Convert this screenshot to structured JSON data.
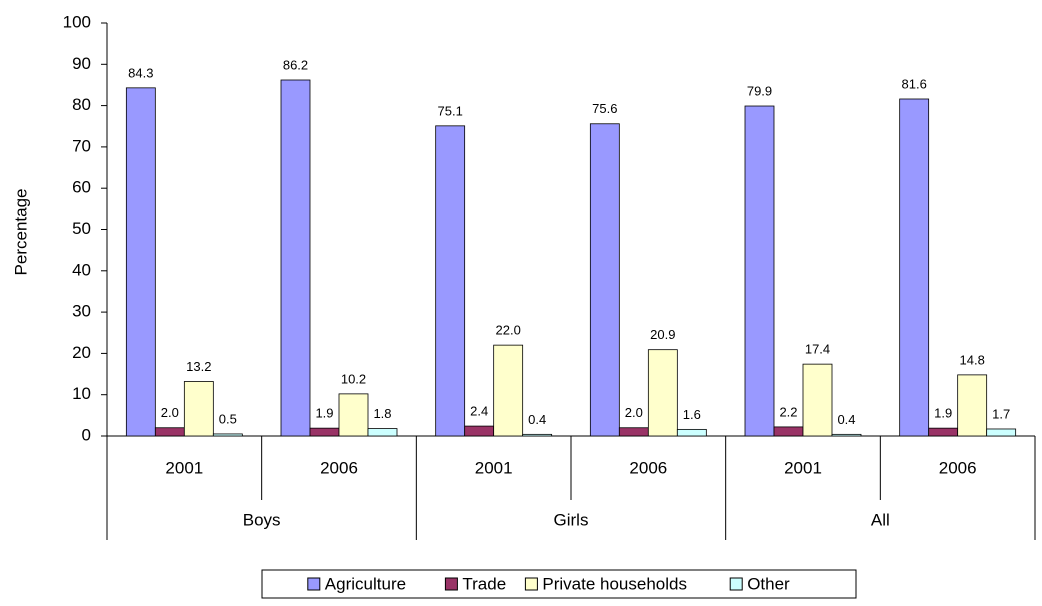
{
  "chart_data": {
    "type": "bar",
    "y_label": "Percentage",
    "groups": [
      {
        "label": "Boys",
        "categories": [
          "2001",
          "2006"
        ]
      },
      {
        "label": "Girls",
        "categories": [
          "2001",
          "2006"
        ]
      },
      {
        "label": "All",
        "categories": [
          "2001",
          "2006"
        ]
      }
    ],
    "series": [
      {
        "name": "Agriculture",
        "color": "#9999ff",
        "values": [
          84.3,
          86.2,
          75.1,
          75.6,
          79.9,
          81.6
        ],
        "value_labels": [
          "84.3",
          "86.2",
          "75.1",
          "75.6",
          "79.9",
          "81.6"
        ]
      },
      {
        "name": "Trade",
        "color": "#993366",
        "values": [
          2.0,
          1.9,
          2.4,
          2.0,
          2.2,
          1.9
        ],
        "value_labels": [
          "2.0",
          "1.9",
          "2.4",
          "2.0",
          "2.2",
          "1.9"
        ]
      },
      {
        "name": "Private households",
        "color": "#ffffcc",
        "values": [
          13.2,
          10.2,
          22.0,
          20.9,
          17.4,
          14.8
        ],
        "value_labels": [
          "13.2",
          "10.2",
          "22.0",
          "20.9",
          "17.4",
          "14.8"
        ]
      },
      {
        "name": "Other",
        "color": "#ccffff",
        "values": [
          0.5,
          1.8,
          0.4,
          1.6,
          0.4,
          1.7
        ],
        "value_labels": [
          "0.5",
          "1.8",
          "0.4",
          "1.6",
          "0.4",
          "1.7"
        ]
      }
    ],
    "ylim": [
      0,
      100
    ],
    "yticks": [
      0,
      10,
      20,
      30,
      40,
      50,
      60,
      70,
      80,
      90,
      100
    ],
    "grid": false,
    "legend": "bottom"
  }
}
